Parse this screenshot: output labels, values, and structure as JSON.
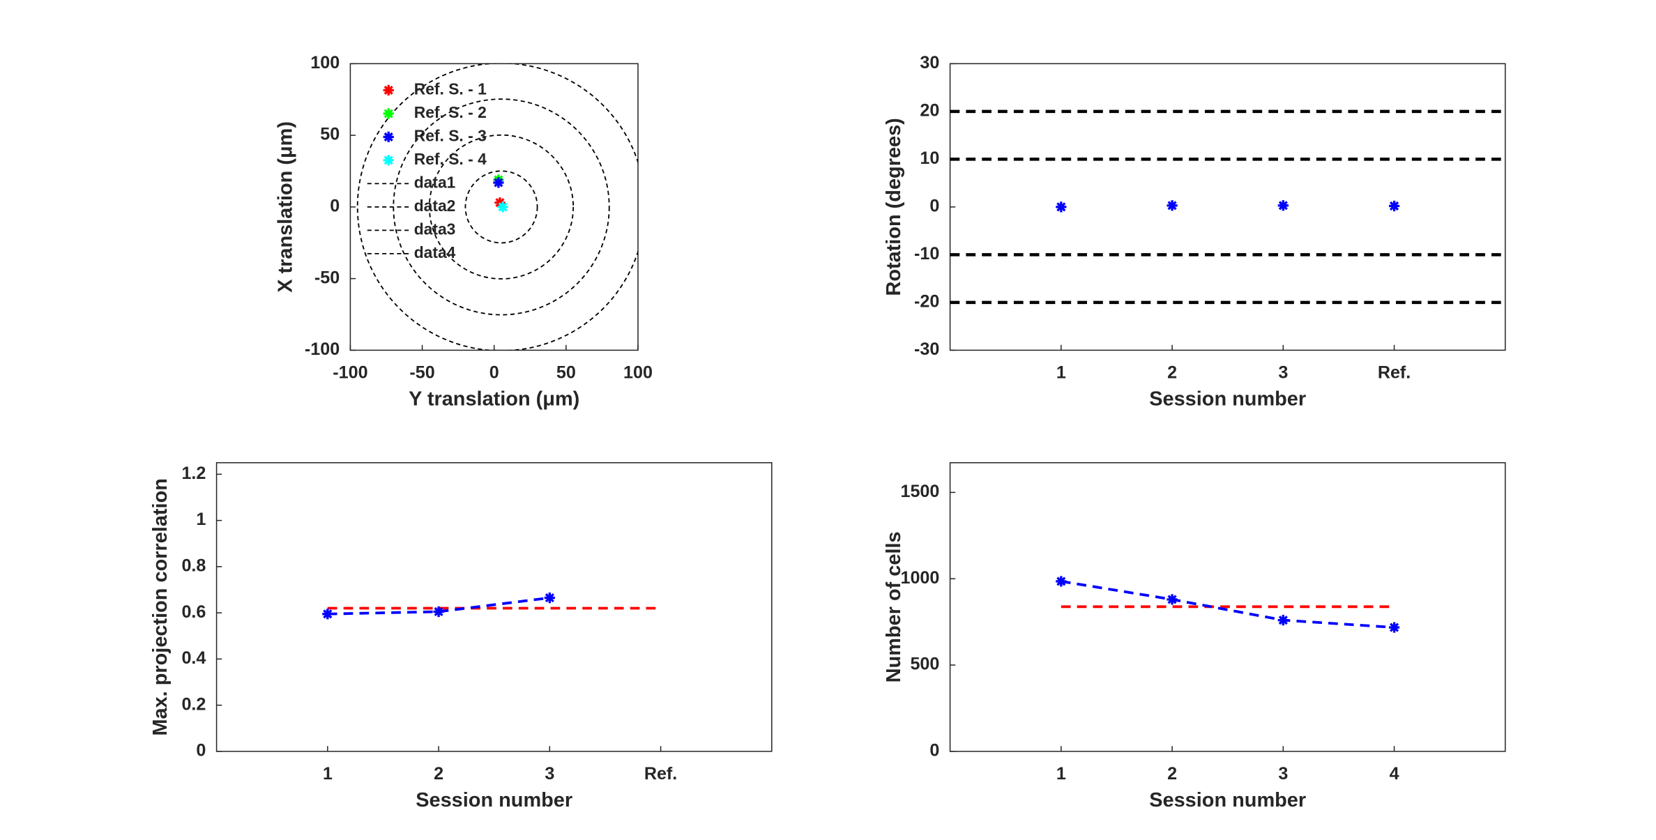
{
  "chart_data": [
    {
      "type": "scatter",
      "xlabel": "Y translation (μm)",
      "ylabel": "X translation (μm)",
      "xlim": [
        -100,
        100
      ],
      "ylim": [
        -100,
        100
      ],
      "xticks": [
        -100,
        -50,
        0,
        50,
        100
      ],
      "yticks": [
        -100,
        -50,
        0,
        50,
        100
      ],
      "legend": "upper left",
      "series": [
        {
          "name": "Ref. S. - 1",
          "color": "#ff0000",
          "x": [
            4
          ],
          "values": [
            3
          ],
          "marker": true
        },
        {
          "name": "Ref. S. - 2",
          "color": "#00ff00",
          "x": [
            3
          ],
          "values": [
            19
          ],
          "marker": true
        },
        {
          "name": "Ref. S. - 3",
          "color": "#0000ff",
          "x": [
            3
          ],
          "values": [
            17
          ],
          "marker": true
        },
        {
          "name": "Ref. S. - 4",
          "color": "#00ffff",
          "x": [
            6
          ],
          "values": [
            0
          ],
          "marker": true
        },
        {
          "name": "data1",
          "color": "#000000",
          "center": [
            5,
            0
          ],
          "radius": 25
        },
        {
          "name": "data2",
          "color": "#000000",
          "center": [
            5,
            0
          ],
          "radius": 50
        },
        {
          "name": "data3",
          "color": "#000000",
          "center": [
            5,
            0
          ],
          "radius": 75
        },
        {
          "name": "data4",
          "color": "#000000",
          "center": [
            5,
            0
          ],
          "radius": 100
        }
      ]
    },
    {
      "type": "scatter",
      "xlabel": "Session number",
      "ylabel": "Rotation (degrees)",
      "xlim": [
        0,
        5
      ],
      "ylim": [
        -30,
        30
      ],
      "xticks": [
        1,
        2,
        3,
        {
          "value": 4,
          "label": "Ref."
        }
      ],
      "yticks": [
        -30,
        -20,
        -10,
        0,
        10,
        20,
        30
      ],
      "reference_lines": [
        20,
        10,
        -10,
        -20
      ],
      "series": [
        {
          "color": "#0000ff",
          "x": [
            1,
            2,
            3,
            4
          ],
          "values": [
            0,
            0.3,
            0.3,
            0.2
          ],
          "marker": true
        }
      ]
    },
    {
      "type": "line",
      "xlabel": "Session number",
      "ylabel": "Max. projection correlation",
      "xlim": [
        0,
        5
      ],
      "ylim": [
        0,
        1.25
      ],
      "xticks": [
        1,
        2,
        3,
        {
          "value": 4,
          "label": "Ref."
        }
      ],
      "yticks": [
        0,
        0.2,
        0.4,
        0.6,
        0.8,
        1,
        1.2
      ],
      "series": [
        {
          "color": "#ff0000",
          "x": [
            1,
            4
          ],
          "values": [
            0.62,
            0.62
          ],
          "dashed": true
        },
        {
          "color": "#0000ff",
          "x": [
            1,
            2,
            3
          ],
          "values": [
            0.595,
            0.605,
            0.665
          ],
          "dashed": true,
          "marker": true
        }
      ]
    },
    {
      "type": "line",
      "xlabel": "Session number",
      "ylabel": "Number of cells",
      "xlim": [
        0,
        5
      ],
      "ylim": [
        0,
        1672
      ],
      "xticks": [
        1,
        2,
        3,
        4
      ],
      "yticks": [
        0,
        500,
        1000,
        1500
      ],
      "series": [
        {
          "color": "#ff0000",
          "x": [
            1,
            4
          ],
          "values": [
            838,
            838
          ],
          "dashed": true
        },
        {
          "color": "#0000ff",
          "x": [
            1,
            2,
            3,
            4
          ],
          "values": [
            985,
            880,
            760,
            718
          ],
          "dashed": true,
          "marker": true
        }
      ]
    }
  ]
}
